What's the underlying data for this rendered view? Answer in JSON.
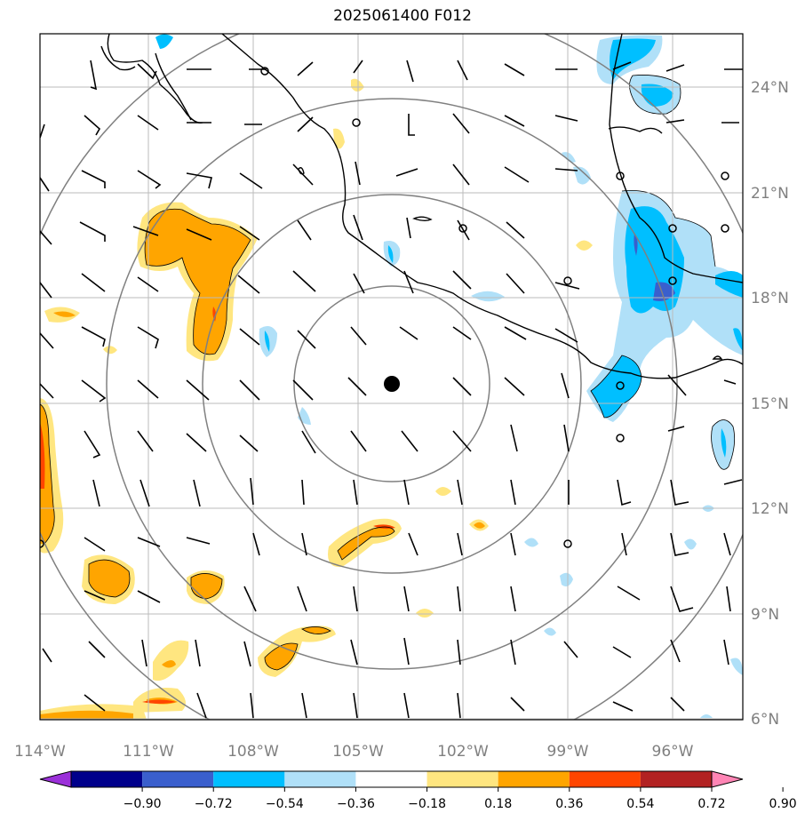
{
  "title": "2025061400 F012",
  "map": {
    "lon_labels": [
      "114°W",
      "111°W",
      "108°W",
      "105°W",
      "102°W",
      "99°W",
      "96°W"
    ],
    "lat_labels": [
      "24°N",
      "21°N",
      "18°N",
      "15°N",
      "12°N",
      "9°N",
      "6°N"
    ],
    "center_marker": "storm-center-dot",
    "range_rings": 4
  },
  "colorbar": {
    "ticks": [
      "−0.90",
      "−0.72",
      "−0.54",
      "−0.36",
      "−0.18",
      "0.18",
      "0.36",
      "0.54",
      "0.72",
      "0.90"
    ],
    "colors": [
      "#9b30d9",
      "#00008b",
      "#3a5fcd",
      "#00bfff",
      "#b0e0f8",
      "#ffffff",
      "#ffe680",
      "#ffa500",
      "#ff4500",
      "#b22222",
      "#ff85b5"
    ]
  },
  "colors": {
    "warm_light": "#ffe680",
    "warm": "#ffa500",
    "warm_strong": "#ff4500",
    "cool_light": "#b0e0f8",
    "cool": "#00bfff",
    "cool_strong": "#3a5fcd",
    "grid": "#bbbbbb",
    "ring": "#808080"
  }
}
